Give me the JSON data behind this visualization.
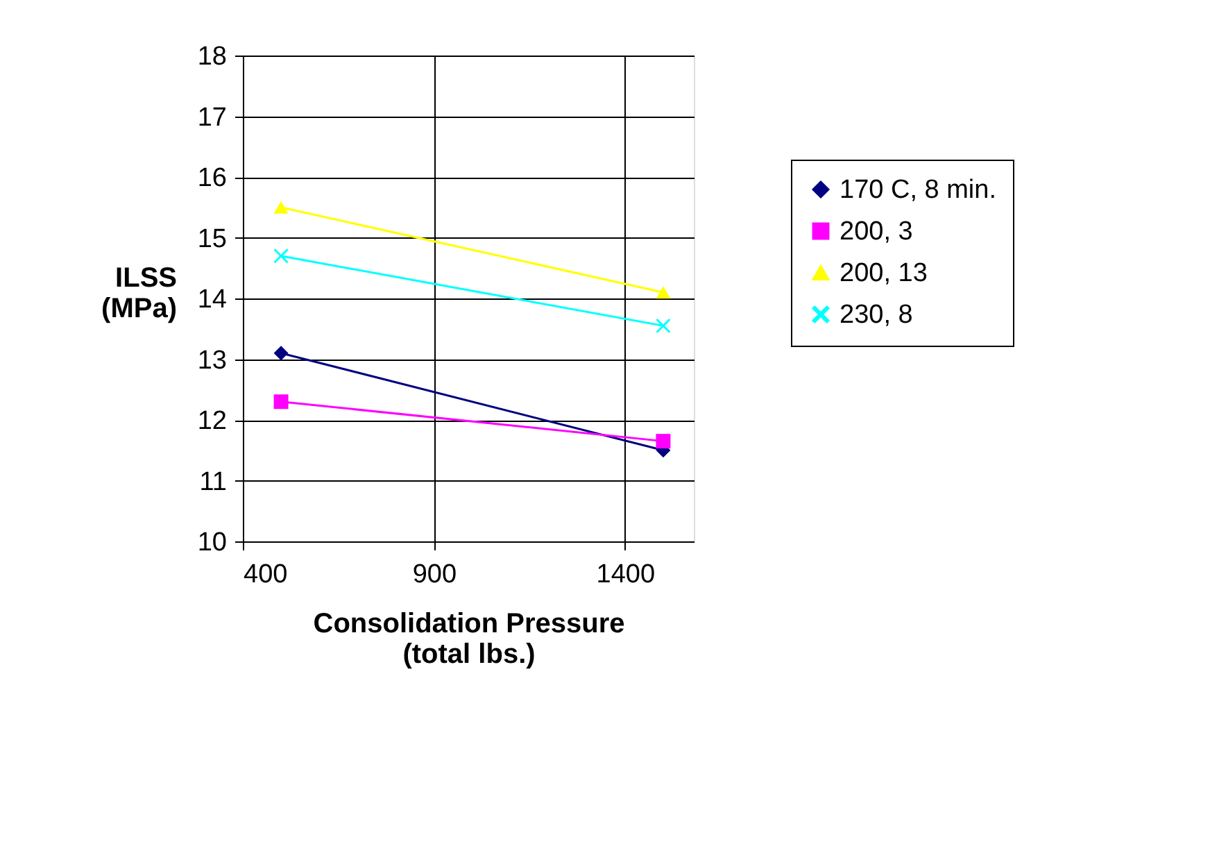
{
  "chart_data": {
    "type": "line",
    "xlabel": "Consolidation Pressure (total lbs.)",
    "ylabel": "ILSS (MPa)",
    "x": [
      500,
      1500
    ],
    "series": [
      {
        "name": "170 C, 8 min.",
        "color": "#000080",
        "marker": "diamond",
        "values": [
          13.1,
          11.5
        ]
      },
      {
        "name": "200, 3",
        "color": "#ff00ff",
        "marker": "square",
        "values": [
          12.3,
          11.65
        ]
      },
      {
        "name": "200, 13",
        "color": "#ffff00",
        "marker": "triangle",
        "values": [
          15.5,
          14.1
        ]
      },
      {
        "name": "230, 8",
        "color": "#00ffff",
        "marker": "cross",
        "values": [
          14.7,
          13.55
        ]
      }
    ],
    "xlim": [
      400,
      1580
    ],
    "xticks": [
      400,
      900,
      {
        "value": 1400,
        "label": "1400"
      }
    ],
    "ylim": [
      10,
      18
    ],
    "yticks": [
      10,
      11,
      12,
      13,
      14,
      15,
      16,
      17,
      18
    ],
    "grid": true,
    "legend": "right",
    "line_style": "solid"
  }
}
